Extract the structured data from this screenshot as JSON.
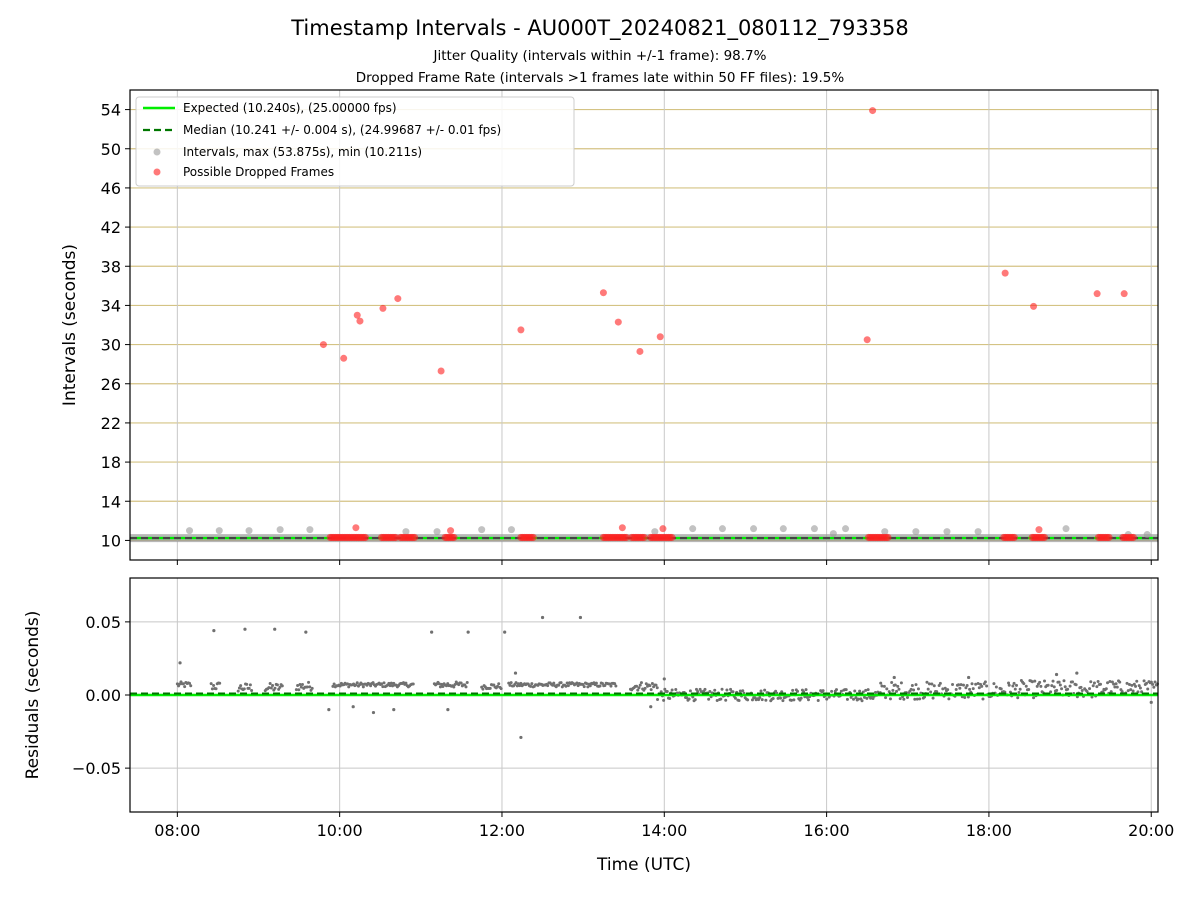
{
  "figure": {
    "title": "Timestamp Intervals - AU000T_20240821_080112_793358",
    "subtitle_1": "Jitter Quality (intervals within +/-1 frame): 98.7%",
    "subtitle_2": "Dropped Frame Rate (intervals >1 frames late within 50 FF files): 19.5%"
  },
  "colors": {
    "expected_line": "#00ee00",
    "median_line": "#007700",
    "interval_points": "#999999",
    "dropped_points": "#ff2020",
    "hgrid_top": "#d4c384",
    "grid": "#c8c8c8",
    "residual_points": "#707070"
  },
  "chart_data": [
    {
      "type": "scatter",
      "ylabel": "Intervals (seconds)",
      "xlim": [
        "07:25",
        "20:05"
      ],
      "ylim": [
        8,
        56
      ],
      "yticks": [
        10,
        14,
        18,
        22,
        26,
        30,
        34,
        38,
        42,
        46,
        50,
        54
      ],
      "xticks": [
        "08:00",
        "10:00",
        "12:00",
        "14:00",
        "16:00",
        "18:00",
        "20:00"
      ],
      "grid": "horizontal gold lines at y ticks, vertical grey lines at x ticks",
      "legend_position": "upper-left",
      "legend": [
        "Expected (10.240s), (25.00000 fps)",
        "Median (10.241 +/- 0.004 s), (24.99687 +/- 0.01 fps)",
        "Intervals, max (53.875s), min (10.211s)",
        "Possible Dropped Frames"
      ],
      "expected_value": 10.24,
      "median_value": 10.241,
      "intervals_baseline_segments": [
        [
          "07:25",
          "20:05"
        ]
      ],
      "intervals_sparse_points": [
        {
          "x": "08:09",
          "y": 11.0
        },
        {
          "x": "08:31",
          "y": 11.0
        },
        {
          "x": "08:53",
          "y": 11.0
        },
        {
          "x": "09:16",
          "y": 11.1
        },
        {
          "x": "09:38",
          "y": 11.1
        },
        {
          "x": "10:49",
          "y": 10.9
        },
        {
          "x": "11:12",
          "y": 10.9
        },
        {
          "x": "11:45",
          "y": 11.1
        },
        {
          "x": "12:07",
          "y": 11.1
        },
        {
          "x": "13:53",
          "y": 10.9
        },
        {
          "x": "14:21",
          "y": 11.2
        },
        {
          "x": "14:43",
          "y": 11.2
        },
        {
          "x": "15:06",
          "y": 11.2
        },
        {
          "x": "15:28",
          "y": 11.2
        },
        {
          "x": "15:51",
          "y": 11.2
        },
        {
          "x": "16:05",
          "y": 10.7
        },
        {
          "x": "16:14",
          "y": 11.2
        },
        {
          "x": "16:43",
          "y": 10.9
        },
        {
          "x": "17:06",
          "y": 10.9
        },
        {
          "x": "17:29",
          "y": 10.9
        },
        {
          "x": "17:52",
          "y": 10.9
        },
        {
          "x": "18:57",
          "y": 11.2
        },
        {
          "x": "19:43",
          "y": 10.6
        },
        {
          "x": "19:57",
          "y": 10.6
        }
      ],
      "dropped_frames_clusters": [
        [
          "09:53",
          "10:19"
        ],
        [
          "10:31",
          "10:42"
        ],
        [
          "10:45",
          "10:56"
        ],
        [
          "11:18",
          "11:25"
        ],
        [
          "12:14",
          "12:24"
        ],
        [
          "13:15",
          "13:32"
        ],
        [
          "13:36",
          "13:46"
        ],
        [
          "13:50",
          "14:06"
        ],
        [
          "16:31",
          "16:46"
        ],
        [
          "18:11",
          "18:19"
        ],
        [
          "18:32",
          "18:42"
        ],
        [
          "19:21",
          "19:30"
        ],
        [
          "19:39",
          "19:48"
        ]
      ],
      "dropped_frames_points": [
        {
          "x": "09:48",
          "y": 30.0
        },
        {
          "x": "10:03",
          "y": 28.6
        },
        {
          "x": "10:13",
          "y": 33.0
        },
        {
          "x": "10:15",
          "y": 32.4
        },
        {
          "x": "10:32",
          "y": 33.7
        },
        {
          "x": "10:43",
          "y": 34.7
        },
        {
          "x": "11:15",
          "y": 27.3
        },
        {
          "x": "11:22",
          "y": 11.0
        },
        {
          "x": "12:14",
          "y": 31.5
        },
        {
          "x": "13:15",
          "y": 35.3
        },
        {
          "x": "13:26",
          "y": 32.3
        },
        {
          "x": "13:29",
          "y": 11.3
        },
        {
          "x": "13:42",
          "y": 29.3
        },
        {
          "x": "13:57",
          "y": 30.8
        },
        {
          "x": "13:59",
          "y": 11.2
        },
        {
          "x": "16:30",
          "y": 30.5
        },
        {
          "x": "16:34",
          "y": 53.9
        },
        {
          "x": "18:12",
          "y": 37.3
        },
        {
          "x": "18:33",
          "y": 33.9
        },
        {
          "x": "18:37",
          "y": 11.1
        },
        {
          "x": "19:20",
          "y": 35.2
        },
        {
          "x": "19:40",
          "y": 35.2
        },
        {
          "x": "10:12",
          "y": 11.3
        }
      ]
    },
    {
      "type": "scatter",
      "xlabel": "Time (UTC)",
      "ylabel": "Residuals (seconds)",
      "xlim": [
        "07:25",
        "20:05"
      ],
      "ylim": [
        -0.08,
        0.08
      ],
      "yticks": [
        0.05,
        0.0,
        -0.05
      ],
      "ytick_labels": [
        "0.05",
        "0.00",
        "−0.05"
      ],
      "xticks": [
        "08:00",
        "10:00",
        "12:00",
        "14:00",
        "16:00",
        "18:00",
        "20:00"
      ],
      "tick_labels": [
        "08:00",
        "10:00",
        "12:00",
        "14:00",
        "16:00",
        "18:00",
        "20:00"
      ],
      "grid": true,
      "expected_value": 0.0,
      "median_value": 0.001,
      "residual_segments": [
        {
          "start": "08:00",
          "end": "08:10",
          "center": 0.007,
          "spread": 0.002
        },
        {
          "start": "08:25",
          "end": "08:32",
          "center": 0.006,
          "spread": 0.003
        },
        {
          "start": "08:45",
          "end": "08:55",
          "center": 0.005,
          "spread": 0.003
        },
        {
          "start": "09:05",
          "end": "09:18",
          "center": 0.005,
          "spread": 0.003
        },
        {
          "start": "09:28",
          "end": "09:40",
          "center": 0.006,
          "spread": 0.003
        },
        {
          "start": "09:55",
          "end": "10:55",
          "center": 0.007,
          "spread": 0.0015
        },
        {
          "start": "11:10",
          "end": "11:35",
          "center": 0.007,
          "spread": 0.002
        },
        {
          "start": "11:45",
          "end": "12:00",
          "center": 0.006,
          "spread": 0.002
        },
        {
          "start": "12:05",
          "end": "13:25",
          "center": 0.007,
          "spread": 0.0015
        },
        {
          "start": "13:35",
          "end": "13:55",
          "center": 0.006,
          "spread": 0.003
        },
        {
          "start": "13:55",
          "end": "16:40",
          "center": 0.0,
          "spread": 0.004
        },
        {
          "start": "16:40",
          "end": "18:15",
          "center": 0.003,
          "spread": 0.006
        },
        {
          "start": "18:15",
          "end": "19:25",
          "center": 0.004,
          "spread": 0.006
        },
        {
          "start": "19:25",
          "end": "20:05",
          "center": 0.005,
          "spread": 0.005
        }
      ],
      "residual_outliers": [
        {
          "x": "08:02",
          "y": 0.022
        },
        {
          "x": "08:27",
          "y": 0.044
        },
        {
          "x": "08:50",
          "y": 0.045
        },
        {
          "x": "09:12",
          "y": 0.045
        },
        {
          "x": "09:35",
          "y": 0.043
        },
        {
          "x": "11:08",
          "y": 0.043
        },
        {
          "x": "11:35",
          "y": 0.043
        },
        {
          "x": "12:02",
          "y": 0.043
        },
        {
          "x": "12:30",
          "y": 0.053
        },
        {
          "x": "12:58",
          "y": 0.053
        },
        {
          "x": "12:14",
          "y": -0.029
        },
        {
          "x": "09:52",
          "y": -0.01
        },
        {
          "x": "10:10",
          "y": -0.008
        },
        {
          "x": "10:25",
          "y": -0.012
        },
        {
          "x": "10:40",
          "y": -0.01
        },
        {
          "x": "11:20",
          "y": -0.01
        },
        {
          "x": "12:10",
          "y": 0.015
        },
        {
          "x": "13:50",
          "y": -0.008
        },
        {
          "x": "14:00",
          "y": 0.011
        },
        {
          "x": "16:50",
          "y": 0.012
        },
        {
          "x": "17:45",
          "y": 0.012
        },
        {
          "x": "18:50",
          "y": 0.014
        },
        {
          "x": "19:05",
          "y": 0.015
        },
        {
          "x": "20:00",
          "y": -0.005
        }
      ]
    }
  ]
}
